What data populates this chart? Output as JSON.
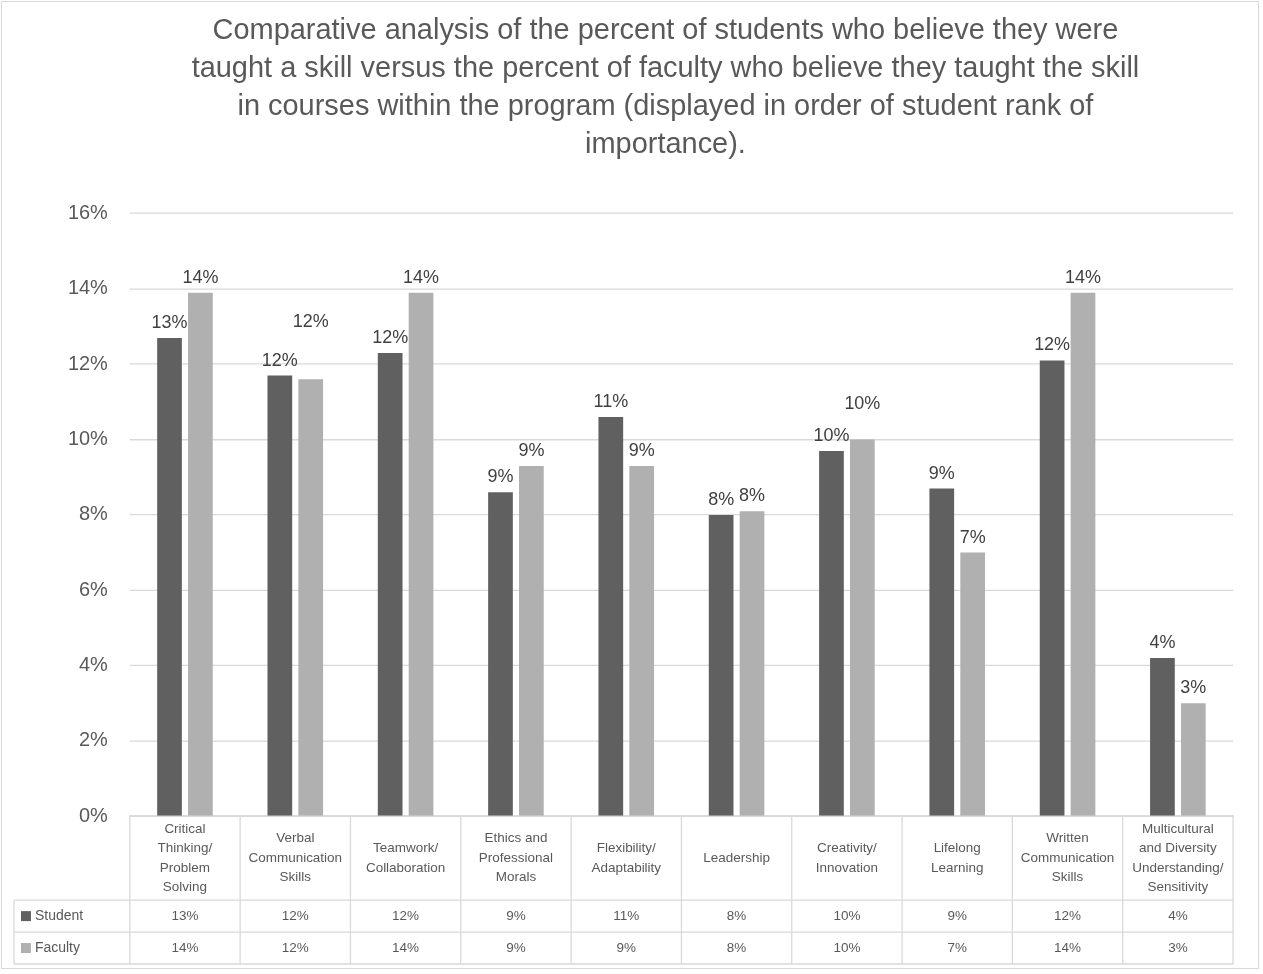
{
  "chart_data": {
    "type": "bar",
    "title": "Comparative analysis of the percent of students who believe they were taught a skill versus the percent of faculty who believe they taught the skill in courses within the program (displayed in order of student rank of importance).",
    "categories": [
      "Critical Thinking/Problem Solving",
      "Verbal Communication Skills",
      "Teamwork/Collaboration",
      "Ethics and Professional Morals",
      "Flexibility/Adaptability",
      "Leadership",
      "Creativity/Innovation",
      "Lifelong Learning",
      "Written Communication Skills",
      "Multicultural and Diversity Understanding/Sensitivity"
    ],
    "series": [
      {
        "name": "Student",
        "color": "#606060",
        "values": [
          12.7,
          11.7,
          12.3,
          8.6,
          10.6,
          8.0,
          9.7,
          8.7,
          12.1,
          4.2
        ],
        "value_labels": [
          "13%",
          "12%",
          "12%",
          "9%",
          "11%",
          "8%",
          "10%",
          "9%",
          "12%",
          "4%"
        ]
      },
      {
        "name": "Faculty",
        "color": "#b0b0b0",
        "values": [
          13.9,
          11.6,
          13.9,
          9.3,
          9.3,
          8.1,
          10.0,
          7.0,
          13.9,
          3.0
        ],
        "value_labels": [
          "14%",
          "12%",
          "14%",
          "9%",
          "9%",
          "8%",
          "10%",
          "7%",
          "14%",
          "3%"
        ]
      }
    ],
    "ylim": [
      0,
      16
    ],
    "yticks": [
      {
        "value": 0,
        "label": "0%"
      },
      {
        "value": 2,
        "label": "2%"
      },
      {
        "value": 4,
        "label": "4%"
      },
      {
        "value": 6,
        "label": "6%"
      },
      {
        "value": 8,
        "label": "8%"
      },
      {
        "value": 10,
        "label": "10%"
      },
      {
        "value": 12,
        "label": "12%"
      },
      {
        "value": 14,
        "label": "14%"
      },
      {
        "value": 16,
        "label": "16%"
      }
    ],
    "grid": "y",
    "legend": "bottom"
  }
}
